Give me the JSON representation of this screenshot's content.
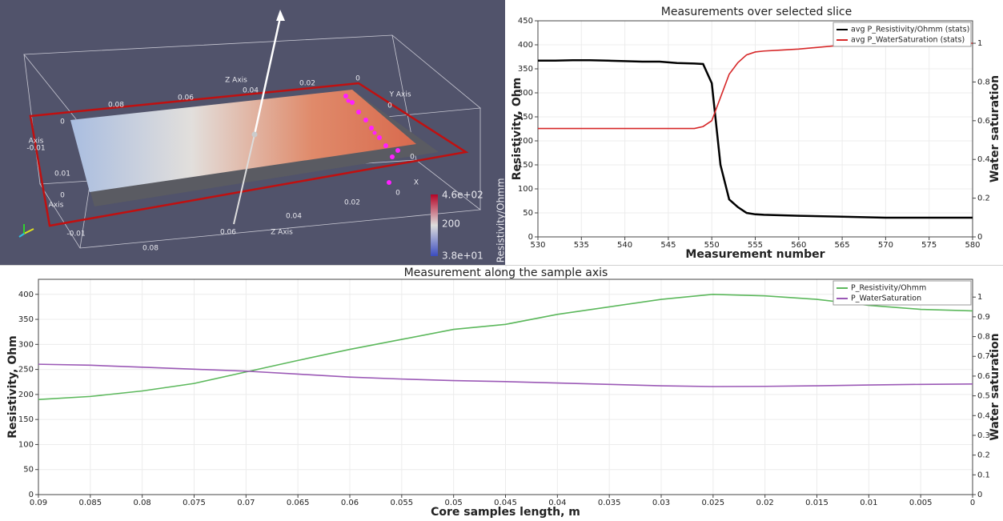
{
  "render_view": {
    "labels": [
      "Z Axis",
      "0.08",
      "0.06",
      "0.04",
      "0.02",
      "0",
      "Y Axis",
      "0",
      "0",
      "-0.01",
      "Axis",
      "0.01",
      "0",
      "Axis",
      "-0.01",
      "0.08",
      "0.06",
      "0.04",
      "Z Axis",
      "0.02",
      "0",
      "0",
      "X"
    ],
    "colorbar": {
      "title": "P_Resistivity/Ohmm",
      "max_label": "4.6e+02",
      "mid_label": "200",
      "min_label": "3.8e+01"
    }
  },
  "chart_data": [
    {
      "type": "line",
      "title": "Measurements over selected slice",
      "xlabel": "Measurement number",
      "ylabel": "Resistivity, Ohm",
      "y2label": "Water saturation",
      "x": [
        530,
        532,
        534,
        536,
        538,
        540,
        542,
        544,
        546,
        548,
        549,
        550,
        551,
        552,
        553,
        554,
        555,
        556,
        558,
        560,
        565,
        570,
        575,
        580
      ],
      "series": [
        {
          "name": "avg P_Resistivity/Ohmm (stats)",
          "color": "#000000",
          "values": [
            367,
            367,
            368,
            368,
            367,
            366,
            365,
            365,
            362,
            361,
            360,
            320,
            150,
            78,
            62,
            50,
            47,
            46,
            45,
            44,
            42,
            40,
            40,
            40
          ]
        },
        {
          "name": "avg P_WaterSaturation (stats)",
          "color": "#d62728",
          "axis": "y2",
          "values": [
            0.56,
            0.56,
            0.56,
            0.56,
            0.56,
            0.56,
            0.56,
            0.56,
            0.56,
            0.56,
            0.57,
            0.6,
            0.72,
            0.84,
            0.9,
            0.94,
            0.955,
            0.96,
            0.965,
            0.97,
            0.99,
            1.0,
            1.0,
            1.0
          ]
        }
      ],
      "xlim": [
        530,
        580
      ],
      "xticks": [
        530,
        535,
        540,
        545,
        550,
        555,
        560,
        565,
        570,
        575,
        580
      ],
      "ylim": [
        0,
        450
      ],
      "yticks": [
        0,
        50,
        100,
        150,
        200,
        250,
        300,
        350,
        400,
        450
      ],
      "y2lim": [
        0,
        1.116
      ],
      "y2ticks": [
        0,
        0.2,
        0.4,
        0.6,
        0.8,
        1
      ],
      "grid": true,
      "legend": "top-right"
    },
    {
      "type": "line",
      "title": "Measurement along the sample axis",
      "xlabel": "Core samples length, m",
      "ylabel": "Resistivity, Ohm",
      "y2label": "Water saturation",
      "x": [
        0.09,
        0.085,
        0.08,
        0.075,
        0.07,
        0.065,
        0.06,
        0.055,
        0.05,
        0.045,
        0.04,
        0.035,
        0.03,
        0.025,
        0.02,
        0.015,
        0.01,
        0.005,
        0
      ],
      "series": [
        {
          "name": "P_Resistivity/Ohmm",
          "color": "#5cb85c",
          "values": [
            190,
            196,
            207,
            222,
            245,
            268,
            290,
            310,
            330,
            340,
            360,
            375,
            390,
            400,
            397,
            390,
            378,
            370,
            367
          ]
        },
        {
          "name": "P_WaterSaturation",
          "color": "#9b59b6",
          "axis": "y2",
          "values": [
            0.66,
            0.655,
            0.645,
            0.635,
            0.625,
            0.61,
            0.595,
            0.585,
            0.577,
            0.572,
            0.565,
            0.558,
            0.551,
            0.547,
            0.548,
            0.551,
            0.555,
            0.558,
            0.56
          ]
        }
      ],
      "xlim": [
        0.09,
        0
      ],
      "xticks": [
        0.09,
        0.085,
        0.08,
        0.075,
        0.07,
        0.065,
        0.06,
        0.055,
        0.05,
        0.045,
        0.04,
        0.035,
        0.03,
        0.025,
        0.02,
        0.015,
        0.01,
        0.005,
        0
      ],
      "ylim": [
        0,
        430
      ],
      "yticks": [
        0,
        50,
        100,
        150,
        200,
        250,
        300,
        350,
        400
      ],
      "y2lim": [
        0,
        1.09
      ],
      "y2ticks": [
        0,
        0.1,
        0.2,
        0.3,
        0.4,
        0.5,
        0.6,
        0.7,
        0.8,
        0.9,
        1
      ],
      "grid": true,
      "legend": "top-right"
    }
  ]
}
